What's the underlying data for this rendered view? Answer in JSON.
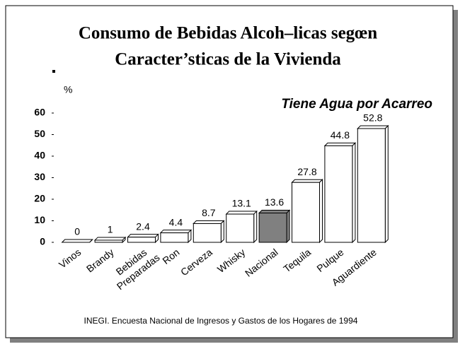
{
  "chart_data": {
    "type": "bar",
    "title": [
      "Consumo de Bebidas Alcoh–licas segœn",
      "Caracter’sticas de la Vivienda"
    ],
    "subtitle": "Tiene Agua por Acarreo",
    "y_label": "%",
    "source": "INEGI. Encuesta Nacional de Ingresos y Gastos de los Hogares de 1994",
    "categories": [
      "Vinos",
      "Brandy",
      "Bebidas Preparadas",
      "Ron",
      "Cerveza",
      "Whisky",
      "Nacional",
      "Tequila",
      "Pulque",
      "Aguardiente"
    ],
    "values": [
      0,
      1,
      2.4,
      4.4,
      8.7,
      13.1,
      13.6,
      27.8,
      44.8,
      52.8
    ],
    "colors": [
      "#ffffff",
      "#ffffff",
      "#ffffff",
      "#ffffff",
      "#ffffff",
      "#ffffff",
      "#808080",
      "#ffffff",
      "#ffffff",
      "#ffffff"
    ],
    "ylim": [
      0,
      60
    ],
    "yticks": [
      0,
      10,
      20,
      30,
      40,
      50,
      60
    ],
    "grid": false
  }
}
